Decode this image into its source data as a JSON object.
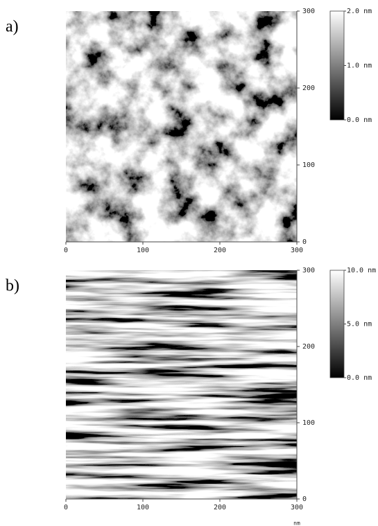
{
  "chart_data": [
    {
      "type": "image",
      "label": "a)",
      "xlim": [
        0,
        300
      ],
      "xticks": [
        0,
        100,
        200,
        300
      ],
      "ylim": [
        0,
        300
      ],
      "yticks": [
        0,
        100,
        200,
        300
      ],
      "colorbar": {
        "lim": [
          0,
          2
        ],
        "ticks": [
          {
            "value": 0,
            "label": "0.0 nm"
          },
          {
            "value": 1,
            "label": "1.0 nm"
          },
          {
            "value": 2,
            "label": "2.0 nm"
          }
        ]
      }
    },
    {
      "type": "image",
      "label": "b)",
      "xlabel": "nm",
      "xlim": [
        0,
        300
      ],
      "xticks": [
        0,
        100,
        200,
        300
      ],
      "ylim": [
        0,
        300
      ],
      "yticks": [
        0,
        100,
        200,
        300
      ],
      "colorbar": {
        "lim": [
          0,
          10
        ],
        "ticks": [
          {
            "value": 0,
            "label": "0.0 nm"
          },
          {
            "value": 5,
            "label": "5.0 nm"
          },
          {
            "value": 10,
            "label": "10.0 nm"
          }
        ]
      }
    }
  ]
}
